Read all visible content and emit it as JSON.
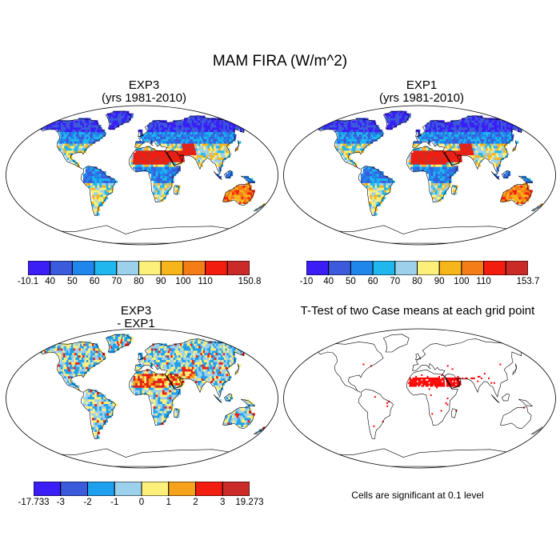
{
  "figure_title": "MAM FIRA (W/m^2)",
  "panels": {
    "exp3": {
      "title_line1": "EXP3",
      "title_line2": "(yrs 1981-2010)",
      "colorbar": {
        "colors": [
          "#3a1ef5",
          "#3b5bdc",
          "#1f87ec",
          "#1fb7ee",
          "#9dd0ea",
          "#fcf07a",
          "#f6b51b",
          "#f57d17",
          "#f21d0f",
          "#cb2b28"
        ],
        "labels": [
          "-10.1",
          "40",
          "50",
          "60",
          "70",
          "80",
          "90",
          "100",
          "110",
          "150.8"
        ]
      }
    },
    "exp1": {
      "title_line1": "EXP1",
      "title_line2": "(yrs 1981-2010)",
      "colorbar": {
        "colors": [
          "#3a1ef5",
          "#3b5bdc",
          "#1f87ec",
          "#1fb7ee",
          "#9dd0ea",
          "#fcf07a",
          "#f6b51b",
          "#f57d17",
          "#f21d0f",
          "#cb2b28"
        ],
        "labels": [
          "-10",
          "40",
          "50",
          "60",
          "70",
          "80",
          "90",
          "100",
          "110",
          "153.7"
        ]
      }
    },
    "diff": {
      "title_line1": "EXP3",
      "title_line2": "- EXP1",
      "colorbar": {
        "colors": [
          "#3a1ef5",
          "#3b5bdc",
          "#1fa0ef",
          "#9dd0ea",
          "#fcf07a",
          "#f6a21b",
          "#f21d0f",
          "#cb2b28"
        ],
        "labels": [
          "-17.733",
          "-3",
          "-2",
          "-1",
          "0",
          "1",
          "2",
          "3",
          "19.273"
        ]
      }
    },
    "ttest": {
      "title": "T-Test of two Case means at each grid point",
      "note": "Cells are significant at 0.1 level",
      "marker_color": "#ff0000"
    }
  },
  "colors": {
    "ocean": "#ffffff",
    "coast": "#000000"
  }
}
